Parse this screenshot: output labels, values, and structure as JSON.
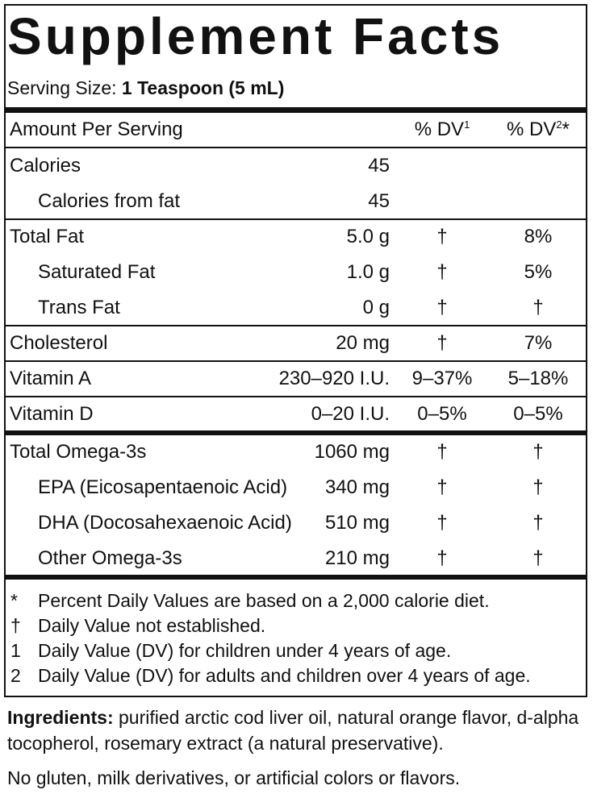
{
  "title": "Supplement Facts",
  "serving": {
    "label": "Serving Size:",
    "value": "1 Teaspoon (5 mL)"
  },
  "header": {
    "amount": "Amount Per Serving",
    "dv1": "% DV",
    "dv1_sup": "1",
    "dv2": "% DV",
    "dv2_sup": "2",
    "dv2_suffix": "*"
  },
  "rows": [
    {
      "name": "Calories",
      "amount": "45"
    },
    {
      "name": "Calories from fat",
      "amount": "45"
    },
    {
      "name": "Total Fat",
      "amount": "5.0 g",
      "dv1": "†",
      "dv2": "8%"
    },
    {
      "name": "Saturated Fat",
      "amount": "1.0 g",
      "dv1": "†",
      "dv2": "5%"
    },
    {
      "name": "Trans Fat",
      "amount": "0 g",
      "dv1": "†",
      "dv2": "†"
    },
    {
      "name": "Cholesterol",
      "amount": "20 mg",
      "dv1": "†",
      "dv2": "7%"
    },
    {
      "name": "Vitamin A",
      "amount": "230–920 I.U.",
      "dv1": "9–37%",
      "dv2": "5–18%"
    },
    {
      "name": "Vitamin D",
      "amount": "0–20 I.U.",
      "dv1": "0–5%",
      "dv2": "0–5%"
    },
    {
      "name": "Total Omega-3s",
      "amount": "1060 mg",
      "dv1": "†",
      "dv2": "†"
    },
    {
      "name": "EPA (Eicosapentaenoic Acid)",
      "amount": "340 mg",
      "dv1": "†",
      "dv2": "†"
    },
    {
      "name": "DHA (Docosahexaenoic Acid)",
      "amount": "510 mg",
      "dv1": "†",
      "dv2": "†"
    },
    {
      "name": "Other Omega-3s",
      "amount": "210 mg",
      "dv1": "†",
      "dv2": "†"
    }
  ],
  "footnotes": [
    {
      "symbol": "*",
      "text": "Percent Daily Values are based on a 2,000 calorie diet."
    },
    {
      "symbol": "†",
      "text": "Daily Value not established."
    },
    {
      "symbol": "1",
      "text": "Daily Value (DV) for children under 4 years of age."
    },
    {
      "symbol": "2",
      "text": "Daily Value (DV) for adults and children over 4 years of age."
    }
  ],
  "ingredients": {
    "label": "Ingredients:",
    "text": "purified arctic cod liver oil, natural orange flavor, d-alpha tocopherol, rosemary extract (a natural preservative)."
  },
  "note": "No gluten, milk derivatives, or artificial colors or flavors."
}
